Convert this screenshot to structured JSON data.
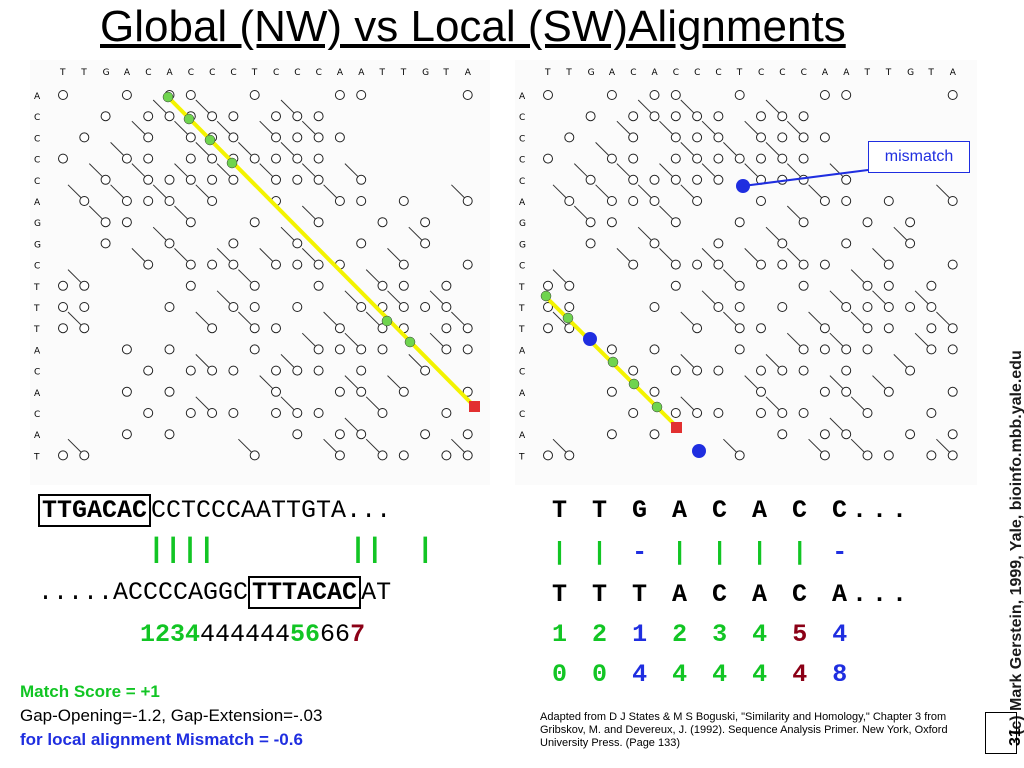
{
  "title": "Global (NW) vs Local (SW)Alignments",
  "left_matrix": {
    "top_letters": [
      "T",
      "T",
      "G",
      "A",
      "C",
      "A",
      "C",
      "C",
      "C",
      "T",
      "C",
      "C",
      "C",
      "A",
      "A",
      "T",
      "T",
      "G",
      "T",
      "A"
    ],
    "side_letters": [
      "A",
      "C",
      "C",
      "C",
      "C",
      "A",
      "G",
      "G",
      "C",
      "T",
      "T",
      "T",
      "A",
      "C",
      "A",
      "C",
      "A",
      "T"
    ]
  },
  "right_matrix": {
    "top_letters": [
      "T",
      "T",
      "G",
      "A",
      "C",
      "A",
      "C",
      "C",
      "C",
      "T",
      "C",
      "C",
      "C",
      "A",
      "A",
      "T",
      "T",
      "G",
      "T",
      "A"
    ],
    "side_letters": [
      "A",
      "C",
      "C",
      "C",
      "C",
      "A",
      "G",
      "G",
      "C",
      "T",
      "T",
      "T",
      "A",
      "C",
      "A",
      "C",
      "A",
      "T"
    ]
  },
  "callout": "mismatch",
  "global": {
    "row1_boxed": "TTGACAC",
    "row1_rest": "CCTCCCAATTGTA...",
    "row2": "||||        ||  |",
    "row3_start": ".....ACCCCAGGC",
    "row3_boxed": "TTTACAC",
    "row3_end": "AT",
    "row4_a": "1234",
    "row4_b": "444444",
    "row4_c": "56",
    "row4_d": "66",
    "row4_e": "7"
  },
  "local": {
    "row1": "T T G A C A C C...",
    "row2": "| | - | | | | -",
    "row3": "T T T A C A C A...",
    "row4": [
      "1",
      "2",
      "1",
      "2",
      "3",
      "4",
      "5",
      "4"
    ],
    "row5": [
      "0",
      "0",
      "4",
      "4",
      "4",
      "4",
      "4",
      "8"
    ]
  },
  "legend": {
    "match": "Match Score = +1",
    "gap": "Gap-Opening=-1.2, Gap-Extension=-.03",
    "mismatch": "for local alignment Mismatch = -0.6"
  },
  "credit": "Adapted from D J States & M S Boguski, \"Similarity and Homology,\" Chapter 3 from Gribskov, M. and Devereux, J. (1992). Sequence Analysis Primer. New York, Oxford University Press. (Page 133)",
  "copyright": "(c) Mark Gerstein, 1999, Yale, bioinfo.mbb.yale.edu",
  "page_number": "31",
  "colors": {
    "match": "#12c524",
    "mismatch": "#8b0016",
    "gap": "#1f2ee0",
    "path": "#f3f300"
  }
}
